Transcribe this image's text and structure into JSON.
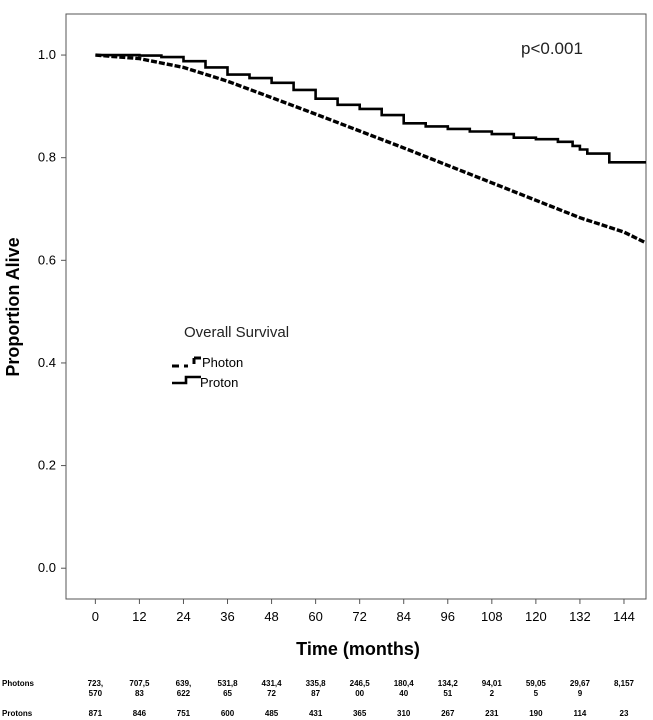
{
  "chart_data": {
    "type": "line",
    "title": "",
    "xlabel": "Time (months)",
    "ylabel": "Proportion Alive",
    "xlim": [
      -8,
      150
    ],
    "ylim": [
      -0.06,
      1.08
    ],
    "xticks": [
      "0",
      "12",
      "24",
      "36",
      "48",
      "60",
      "72",
      "84",
      "96",
      "108",
      "120",
      "132",
      "144"
    ],
    "yticks": [
      "0.0",
      "0.2",
      "0.4",
      "0.6",
      "0.8",
      "1.0"
    ],
    "annotation": "p<0.001",
    "legend": {
      "title": "Overall Survival",
      "position": "center-left",
      "entries": [
        "Photon",
        "Proton"
      ]
    },
    "series": [
      {
        "name": "Photon",
        "style": "dashed",
        "x": [
          0,
          12,
          24,
          36,
          48,
          60,
          72,
          84,
          96,
          108,
          120,
          132,
          144,
          150
        ],
        "y": [
          1.0,
          0.993,
          0.976,
          0.949,
          0.917,
          0.885,
          0.852,
          0.819,
          0.785,
          0.751,
          0.717,
          0.683,
          0.655,
          0.634
        ]
      },
      {
        "name": "Proton",
        "style": "solid",
        "x": [
          0,
          12,
          18,
          24,
          30,
          36,
          42,
          48,
          54,
          60,
          66,
          72,
          78,
          84,
          90,
          96,
          102,
          108,
          114,
          120,
          126,
          130,
          132,
          134,
          138,
          140,
          144,
          150
        ],
        "y": [
          1.0,
          0.999,
          0.996,
          0.988,
          0.976,
          0.962,
          0.955,
          0.946,
          0.932,
          0.915,
          0.903,
          0.895,
          0.883,
          0.867,
          0.861,
          0.856,
          0.851,
          0.846,
          0.839,
          0.836,
          0.831,
          0.823,
          0.816,
          0.808,
          0.808,
          0.791,
          0.791,
          0.791
        ]
      }
    ]
  },
  "risk_table": {
    "rows": [
      {
        "label": "Photons",
        "values": [
          [
            "723,",
            "570"
          ],
          [
            "707,5",
            "83"
          ],
          [
            "639,",
            "622"
          ],
          [
            "531,8",
            "65"
          ],
          [
            "431,4",
            "72"
          ],
          [
            "335,8",
            "87"
          ],
          [
            "246,5",
            "00"
          ],
          [
            "180,4",
            "40"
          ],
          [
            "134,2",
            "51"
          ],
          [
            "94,01",
            "2"
          ],
          [
            "59,05",
            "5"
          ],
          [
            "29,67",
            "9"
          ],
          [
            "8,157",
            ""
          ]
        ]
      },
      {
        "label": "Protons",
        "values": [
          [
            "871"
          ],
          [
            "846"
          ],
          [
            "751"
          ],
          [
            "600"
          ],
          [
            "485"
          ],
          [
            "431"
          ],
          [
            "365"
          ],
          [
            "310"
          ],
          [
            "267"
          ],
          [
            "231"
          ],
          [
            "190"
          ],
          [
            "114"
          ],
          [
            "23"
          ]
        ]
      }
    ]
  }
}
